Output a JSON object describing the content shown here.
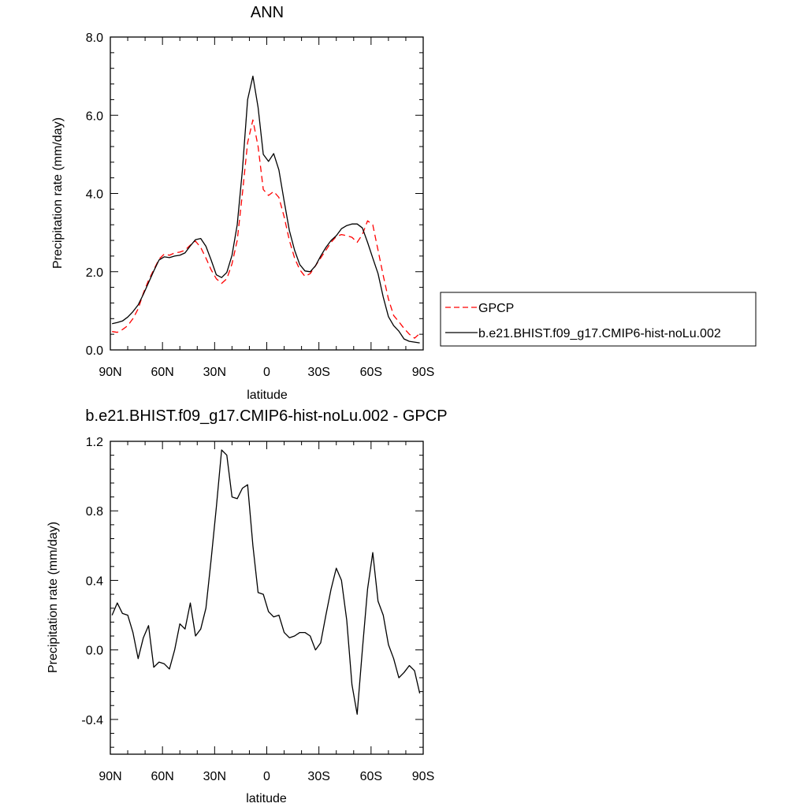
{
  "chart_data": [
    {
      "type": "line",
      "title": "ANN",
      "xlabel": "latitude",
      "ylabel": "Precipitation rate (mm/day)",
      "xlim": [
        90,
        -90
      ],
      "ylim": [
        0,
        8
      ],
      "xticks": [
        90,
        60,
        30,
        0,
        -30,
        -60,
        -90
      ],
      "xtick_labels": [
        "90N",
        "60N",
        "30N",
        "0",
        "30S",
        "60S",
        "90S"
      ],
      "yticks": [
        0,
        2,
        4,
        6,
        8
      ],
      "ytick_labels": [
        "0.0",
        "2.0",
        "4.0",
        "6.0",
        "8.0"
      ],
      "grid": false,
      "legend_position": "right",
      "x": [
        89,
        86,
        83,
        80,
        77,
        74,
        71,
        68,
        65,
        62,
        59,
        56,
        53,
        50,
        47,
        44,
        41,
        38,
        35,
        32,
        29,
        26,
        23,
        20,
        17,
        14,
        11,
        8,
        5,
        2,
        -1,
        -4,
        -7,
        -10,
        -13,
        -16,
        -19,
        -22,
        -25,
        -28,
        -31,
        -34,
        -37,
        -40,
        -43,
        -46,
        -49,
        -52,
        -55,
        -58,
        -61,
        -64,
        -67,
        -70,
        -73,
        -76,
        -79,
        -82,
        -85,
        -88
      ],
      "series": [
        {
          "name": "GPCP",
          "color": "#ff0000",
          "dash": "dashed",
          "values": [
            0.47,
            0.45,
            0.52,
            0.62,
            0.8,
            1.05,
            1.45,
            1.78,
            2.05,
            2.32,
            2.45,
            2.42,
            2.48,
            2.5,
            2.55,
            2.68,
            2.78,
            2.62,
            2.35,
            2.05,
            1.82,
            1.7,
            1.82,
            2.2,
            2.8,
            4.0,
            5.3,
            5.88,
            5.2,
            4.1,
            3.95,
            4.05,
            3.9,
            3.4,
            2.8,
            2.35,
            2.05,
            1.88,
            1.95,
            2.15,
            2.35,
            2.55,
            2.75,
            2.9,
            2.95,
            2.92,
            2.88,
            2.75,
            2.95,
            3.3,
            3.2,
            2.55,
            1.9,
            1.3,
            0.88,
            0.72,
            0.55,
            0.4,
            0.3,
            0.42
          ]
        },
        {
          "name": "b.e21.BHIST.f09_g17.CMIP6-hist-noLu.002",
          "color": "#000000",
          "dash": "solid",
          "values": [
            0.67,
            0.7,
            0.74,
            0.84,
            0.98,
            1.15,
            1.42,
            1.72,
            2.02,
            2.3,
            2.38,
            2.36,
            2.4,
            2.42,
            2.48,
            2.66,
            2.82,
            2.85,
            2.65,
            2.3,
            1.92,
            1.85,
            1.98,
            2.42,
            3.2,
            4.6,
            6.4,
            7.0,
            6.2,
            5.0,
            4.82,
            5.02,
            4.6,
            3.8,
            3.05,
            2.55,
            2.18,
            2.02,
            2.0,
            2.15,
            2.4,
            2.62,
            2.8,
            2.92,
            3.1,
            3.18,
            3.22,
            3.22,
            3.12,
            2.75,
            2.35,
            1.95,
            1.35,
            0.85,
            0.62,
            0.48,
            0.28,
            0.22,
            0.2,
            0.18
          ]
        }
      ]
    },
    {
      "type": "line",
      "title": "b.e21.BHIST.f09_g17.CMIP6-hist-noLu.002 - GPCP",
      "xlabel": "latitude",
      "ylabel": "Precipitation rate (mm/day)",
      "xlim": [
        90,
        -90
      ],
      "ylim": [
        -0.6,
        1.2
      ],
      "xticks": [
        90,
        60,
        30,
        0,
        -30,
        -60,
        -90
      ],
      "xtick_labels": [
        "90N",
        "60N",
        "30N",
        "0",
        "30S",
        "60S",
        "90S"
      ],
      "yticks": [
        -0.4,
        0,
        0.4,
        0.8,
        1.2
      ],
      "ytick_labels": [
        "-0.4",
        "0.0",
        "0.4",
        "0.8",
        "1.2"
      ],
      "grid": false,
      "x": [
        89,
        86,
        83,
        80,
        77,
        74,
        71,
        68,
        65,
        62,
        59,
        56,
        53,
        50,
        47,
        44,
        41,
        38,
        35,
        32,
        29,
        26,
        23,
        20,
        17,
        14,
        11,
        8,
        5,
        2,
        -1,
        -4,
        -7,
        -10,
        -13,
        -16,
        -19,
        -22,
        -25,
        -28,
        -31,
        -34,
        -37,
        -40,
        -43,
        -46,
        -49,
        -52,
        -55,
        -58,
        -61,
        -64,
        -67,
        -70,
        -73,
        -76,
        -79,
        -82,
        -85,
        -88
      ],
      "series": [
        {
          "color": "#000000",
          "dash": "solid",
          "values": [
            0.2,
            0.27,
            0.21,
            0.2,
            0.1,
            -0.05,
            0.07,
            0.14,
            -0.1,
            -0.07,
            -0.08,
            -0.11,
            0.0,
            0.15,
            0.12,
            0.27,
            0.08,
            0.12,
            0.24,
            0.52,
            0.82,
            1.15,
            1.12,
            0.88,
            0.87,
            0.93,
            0.95,
            0.6,
            0.33,
            0.32,
            0.22,
            0.19,
            0.2,
            0.1,
            0.07,
            0.08,
            0.1,
            0.1,
            0.08,
            0.0,
            0.04,
            0.2,
            0.35,
            0.47,
            0.4,
            0.17,
            -0.2,
            -0.37,
            0.0,
            0.35,
            0.56,
            0.28,
            0.2,
            0.03,
            -0.05,
            -0.16,
            -0.13,
            -0.09,
            -0.12,
            -0.25
          ]
        }
      ]
    }
  ]
}
